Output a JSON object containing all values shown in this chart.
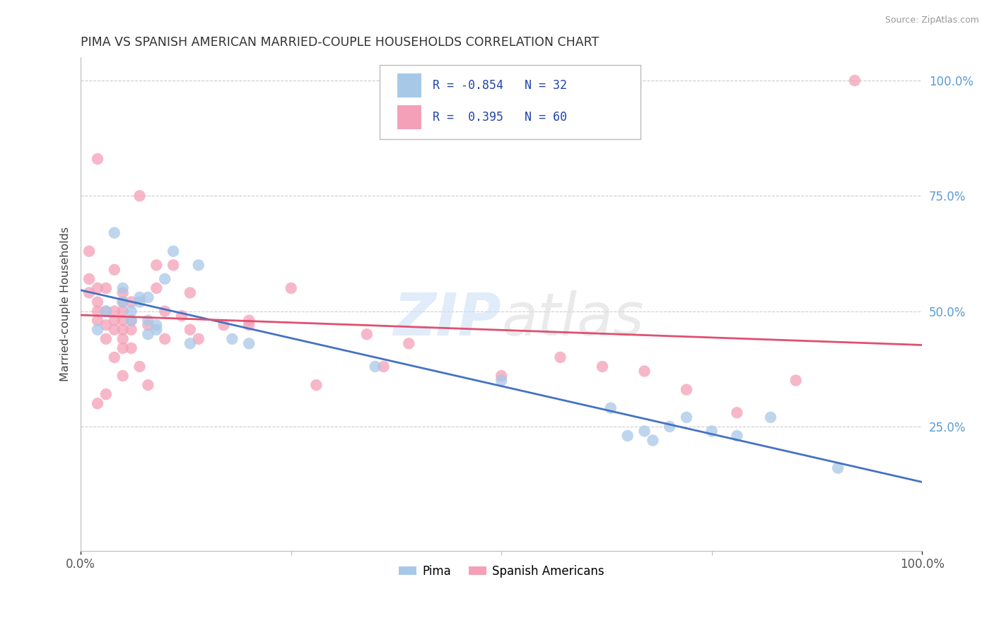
{
  "title": "PIMA VS SPANISH AMERICAN MARRIED-COUPLE HOUSEHOLDS CORRELATION CHART",
  "source": "Source: ZipAtlas.com",
  "ylabel": "Married-couple Households",
  "legend_label1": "Pima",
  "legend_label2": "Spanish Americans",
  "r1": -0.854,
  "n1": 32,
  "r2": 0.395,
  "n2": 60,
  "color_blue": "#a8c8e8",
  "color_pink": "#f4a0b8",
  "line_blue": "#4472c4",
  "line_pink": "#e05070",
  "pima_x": [
    0.02,
    0.03,
    0.04,
    0.05,
    0.05,
    0.06,
    0.06,
    0.07,
    0.07,
    0.08,
    0.08,
    0.08,
    0.09,
    0.09,
    0.1,
    0.11,
    0.13,
    0.14,
    0.18,
    0.2,
    0.35,
    0.5,
    0.63,
    0.65,
    0.67,
    0.68,
    0.7,
    0.72,
    0.75,
    0.78,
    0.82,
    0.9
  ],
  "pima_y": [
    0.46,
    0.5,
    0.67,
    0.52,
    0.55,
    0.48,
    0.5,
    0.52,
    0.53,
    0.45,
    0.48,
    0.53,
    0.46,
    0.47,
    0.57,
    0.63,
    0.43,
    0.6,
    0.44,
    0.43,
    0.38,
    0.35,
    0.29,
    0.23,
    0.24,
    0.22,
    0.25,
    0.27,
    0.24,
    0.23,
    0.27,
    0.16
  ],
  "spanish_x": [
    0.01,
    0.01,
    0.01,
    0.02,
    0.02,
    0.02,
    0.02,
    0.02,
    0.03,
    0.03,
    0.03,
    0.03,
    0.04,
    0.04,
    0.04,
    0.04,
    0.05,
    0.05,
    0.05,
    0.05,
    0.05,
    0.05,
    0.05,
    0.06,
    0.06,
    0.06,
    0.07,
    0.08,
    0.09,
    0.09,
    0.1,
    0.1,
    0.11,
    0.12,
    0.13,
    0.13,
    0.14,
    0.17,
    0.2,
    0.25,
    0.28,
    0.34,
    0.36,
    0.39,
    0.5,
    0.57,
    0.62,
    0.67,
    0.72,
    0.78,
    0.85,
    0.92,
    0.02,
    0.03,
    0.04,
    0.05,
    0.06,
    0.07,
    0.08,
    0.2
  ],
  "spanish_y": [
    0.54,
    0.57,
    0.63,
    0.48,
    0.5,
    0.52,
    0.55,
    0.83,
    0.44,
    0.47,
    0.5,
    0.55,
    0.46,
    0.48,
    0.5,
    0.59,
    0.42,
    0.44,
    0.46,
    0.48,
    0.5,
    0.52,
    0.54,
    0.46,
    0.48,
    0.52,
    0.75,
    0.47,
    0.55,
    0.6,
    0.44,
    0.5,
    0.6,
    0.49,
    0.46,
    0.54,
    0.44,
    0.47,
    0.48,
    0.55,
    0.34,
    0.45,
    0.38,
    0.43,
    0.36,
    0.4,
    0.38,
    0.37,
    0.33,
    0.28,
    0.35,
    1.0,
    0.3,
    0.32,
    0.4,
    0.36,
    0.42,
    0.38,
    0.34,
    0.47
  ],
  "xlim": [
    0.0,
    1.0
  ],
  "ylim": [
    -0.02,
    1.05
  ],
  "yticks": [
    0.25,
    0.5,
    0.75,
    1.0
  ],
  "ytick_labels": [
    "25.0%",
    "50.0%",
    "75.0%",
    "100.0%"
  ],
  "background_color": "#ffffff",
  "grid_color": "#cccccc"
}
